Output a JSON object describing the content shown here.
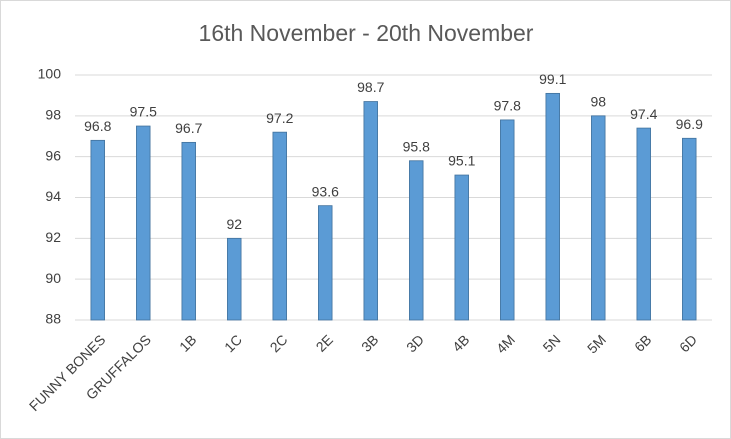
{
  "chart_data": {
    "type": "bar",
    "title": "16th November - 20th November",
    "categories": [
      "FUNNY BONES",
      "GRUFFALOS",
      "1B",
      "1C",
      "2C",
      "2E",
      "3B",
      "3D",
      "4B",
      "4M",
      "5N",
      "5M",
      "6B",
      "6D"
    ],
    "values": [
      96.8,
      97.5,
      96.7,
      92,
      97.2,
      93.6,
      98.7,
      95.8,
      95.1,
      97.8,
      99.1,
      98,
      97.4,
      96.9
    ],
    "color": "#5b9bd5",
    "ylim": [
      88,
      100
    ],
    "yticks": [
      88,
      90,
      92,
      94,
      96,
      98,
      100
    ],
    "grid": true
  }
}
